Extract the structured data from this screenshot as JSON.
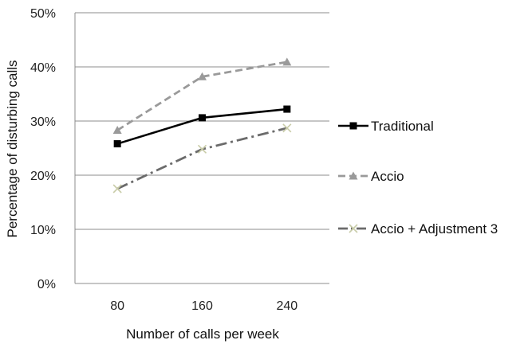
{
  "chart_data": {
    "type": "line",
    "categories": [
      "80",
      "160",
      "240"
    ],
    "xlabel": "Number of calls per week",
    "ylabel": "Percentage of disturbing calls",
    "ylim": [
      0,
      50
    ],
    "yticks": [
      "0%",
      "10%",
      "20%",
      "30%",
      "40%",
      "50%"
    ],
    "grid": "horizontal",
    "legend_position": "right",
    "series": [
      {
        "name": "Traditional",
        "values": [
          25.8,
          30.6,
          32.2
        ],
        "color": "#000000",
        "dash": "solid",
        "marker": "square"
      },
      {
        "name": "Accio",
        "values": [
          28.3,
          38.2,
          40.9
        ],
        "color": "#9a9a9a",
        "dash": "dash",
        "marker": "triangle"
      },
      {
        "name": "Accio + Adjustment 3",
        "values": [
          17.5,
          24.8,
          28.7
        ],
        "color": "#6b6b6b",
        "dash": "dashdot",
        "marker": "x"
      }
    ]
  }
}
